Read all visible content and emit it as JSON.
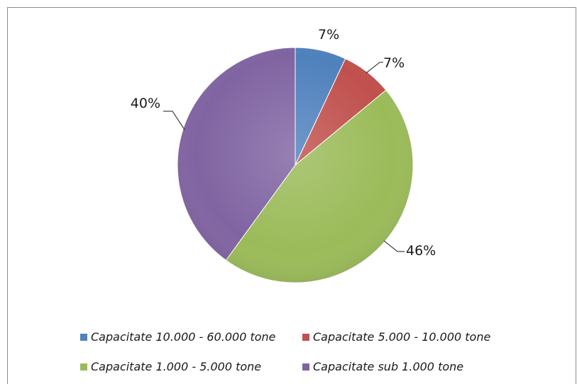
{
  "chart_data": {
    "type": "pie",
    "slices": [
      {
        "label": "Capacitate 10.000 - 60.000 tone",
        "value": 7,
        "value_label": "7%",
        "color": "#4f81bd"
      },
      {
        "label": "Capacitate 5.000 - 10.000 tone",
        "value": 7,
        "value_label": "7%",
        "color": "#c0504d"
      },
      {
        "label": "Capacitate 1.000 - 5.000 tone",
        "value": 46,
        "value_label": "46%",
        "color": "#9bbb59"
      },
      {
        "label": "Capacitate sub 1.000 tone",
        "value": 40,
        "value_label": "40%",
        "color": "#8064a2"
      }
    ],
    "start_angle": "12 o'clock",
    "direction": "clockwise",
    "legend_position": "bottom"
  }
}
